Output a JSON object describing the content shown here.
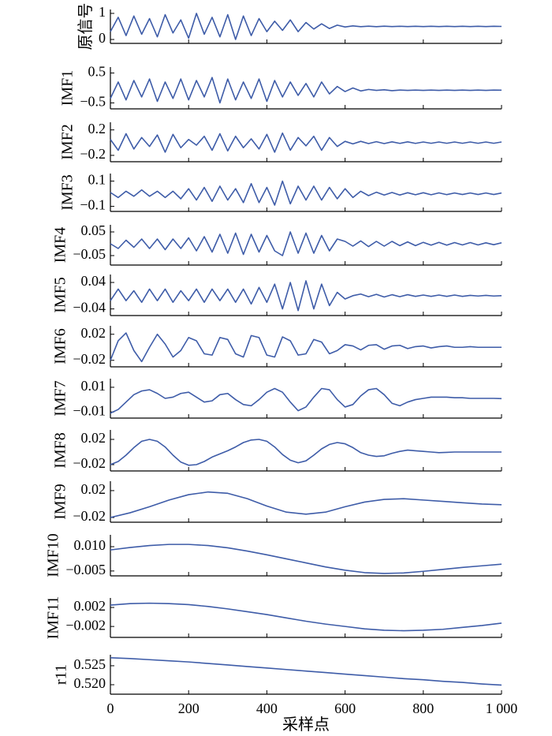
{
  "chart_data": [
    {
      "type": "line",
      "ylabel": "原信号",
      "color": "#3e5ca8",
      "xlim": [
        0,
        1000
      ],
      "ylim": [
        -0.15,
        1.15
      ],
      "yticks": [
        0,
        1
      ],
      "x": [
        0,
        20,
        40,
        60,
        80,
        100,
        120,
        140,
        160,
        180,
        200,
        220,
        240,
        260,
        280,
        300,
        320,
        340,
        360,
        380,
        400,
        420,
        440,
        460,
        480,
        500,
        520,
        540,
        560,
        580,
        600,
        620,
        640,
        660,
        680,
        700,
        720,
        740,
        760,
        780,
        800,
        820,
        840,
        860,
        880,
        900,
        920,
        940,
        960,
        980,
        1000
      ],
      "values": [
        0.3,
        0.85,
        0.15,
        0.9,
        0.2,
        0.8,
        0.1,
        0.95,
        0.25,
        0.75,
        0.05,
        1.0,
        0.2,
        0.85,
        0.1,
        0.95,
        0.0,
        0.9,
        0.15,
        0.8,
        0.3,
        0.7,
        0.35,
        0.75,
        0.3,
        0.65,
        0.4,
        0.6,
        0.42,
        0.55,
        0.48,
        0.52,
        0.49,
        0.51,
        0.49,
        0.51,
        0.495,
        0.505,
        0.495,
        0.505,
        0.495,
        0.505,
        0.495,
        0.505,
        0.495,
        0.505,
        0.495,
        0.505,
        0.495,
        0.505,
        0.5
      ]
    },
    {
      "type": "line",
      "ylabel": "IMF1",
      "color": "#3e5ca8",
      "xlim": [
        0,
        1000
      ],
      "ylim": [
        -0.7,
        0.7
      ],
      "yticks": [
        0.5,
        {
          "value": -0.5,
          "label": "−0.5"
        }
      ],
      "x": [
        0,
        20,
        40,
        60,
        80,
        100,
        120,
        140,
        160,
        180,
        200,
        220,
        240,
        260,
        280,
        300,
        320,
        340,
        360,
        380,
        400,
        420,
        440,
        460,
        480,
        500,
        520,
        540,
        560,
        580,
        600,
        620,
        640,
        660,
        680,
        700,
        720,
        740,
        760,
        780,
        800,
        820,
        840,
        860,
        880,
        900,
        920,
        940,
        960,
        980,
        1000
      ],
      "values": [
        -0.35,
        0.2,
        -0.4,
        0.25,
        -0.3,
        0.3,
        -0.45,
        0.2,
        -0.35,
        0.3,
        -0.4,
        0.25,
        -0.3,
        0.35,
        -0.5,
        0.3,
        -0.4,
        0.2,
        -0.35,
        0.3,
        -0.45,
        0.25,
        -0.3,
        0.2,
        -0.25,
        0.15,
        -0.3,
        0.2,
        -0.2,
        0.05,
        -0.12,
        0.0,
        -0.1,
        -0.05,
        -0.08,
        -0.06,
        -0.09,
        -0.07,
        -0.08,
        -0.07,
        -0.08,
        -0.07,
        -0.08,
        -0.07,
        -0.08,
        -0.07,
        -0.08,
        -0.07,
        -0.08,
        -0.07,
        -0.075
      ]
    },
    {
      "type": "line",
      "ylabel": "IMF2",
      "color": "#3e5ca8",
      "xlim": [
        0,
        1000
      ],
      "ylim": [
        -0.3,
        0.32
      ],
      "yticks": [
        0.2,
        {
          "value": -0.2,
          "label": "−0.2"
        }
      ],
      "x": [
        0,
        20,
        40,
        60,
        80,
        100,
        120,
        140,
        160,
        180,
        200,
        220,
        240,
        260,
        280,
        300,
        320,
        340,
        360,
        380,
        400,
        420,
        440,
        460,
        480,
        500,
        520,
        540,
        560,
        580,
        600,
        620,
        640,
        660,
        680,
        700,
        720,
        740,
        760,
        780,
        800,
        820,
        840,
        860,
        880,
        900,
        920,
        940,
        960,
        980,
        1000
      ],
      "values": [
        0.05,
        -0.12,
        0.14,
        -0.1,
        0.08,
        -0.06,
        0.12,
        -0.15,
        0.13,
        -0.08,
        0.05,
        -0.04,
        0.1,
        -0.12,
        0.14,
        -0.13,
        0.1,
        -0.08,
        0.06,
        -0.1,
        0.13,
        -0.15,
        0.15,
        -0.12,
        0.08,
        -0.05,
        0.1,
        -0.12,
        0.08,
        -0.06,
        0.02,
        -0.02,
        0.02,
        -0.015,
        0.015,
        -0.015,
        0.012,
        -0.012,
        0.012,
        -0.012,
        0.01,
        -0.01,
        0.01,
        -0.01,
        0.01,
        -0.01,
        0.01,
        -0.01,
        0.01,
        -0.01,
        0.01
      ]
    },
    {
      "type": "line",
      "ylabel": "IMF3",
      "color": "#3e5ca8",
      "xlim": [
        0,
        1000
      ],
      "ylim": [
        -0.14,
        0.16
      ],
      "yticks": [
        0.1,
        {
          "value": -0.1,
          "label": "−0.1"
        }
      ],
      "x": [
        0,
        20,
        40,
        60,
        80,
        100,
        120,
        140,
        160,
        180,
        200,
        220,
        240,
        260,
        280,
        300,
        320,
        340,
        360,
        380,
        400,
        420,
        440,
        460,
        480,
        500,
        520,
        540,
        560,
        580,
        600,
        620,
        640,
        660,
        680,
        700,
        720,
        740,
        760,
        780,
        800,
        820,
        840,
        860,
        880,
        900,
        920,
        940,
        960,
        980,
        1000
      ],
      "values": [
        0.01,
        -0.03,
        0.02,
        -0.02,
        0.03,
        -0.02,
        0.02,
        -0.03,
        0.02,
        -0.04,
        0.04,
        -0.05,
        0.05,
        -0.06,
        0.06,
        -0.05,
        0.04,
        -0.07,
        0.08,
        -0.07,
        0.05,
        -0.09,
        0.1,
        -0.08,
        0.06,
        -0.05,
        0.06,
        -0.05,
        0.05,
        -0.04,
        0.04,
        -0.03,
        0.02,
        -0.015,
        0.012,
        -0.01,
        0.01,
        -0.01,
        0.008,
        -0.008,
        0.008,
        -0.008,
        0.007,
        -0.007,
        0.006,
        -0.006,
        0.006,
        -0.006,
        0.006,
        -0.006,
        0.006
      ]
    },
    {
      "type": "line",
      "ylabel": "IMF4",
      "color": "#3e5ca8",
      "xlim": [
        0,
        1000
      ],
      "ylim": [
        -0.09,
        0.08
      ],
      "yticks": [
        0.05,
        {
          "value": -0.05,
          "label": "−0.05"
        }
      ],
      "x": [
        0,
        20,
        40,
        60,
        80,
        100,
        120,
        140,
        160,
        180,
        200,
        220,
        240,
        260,
        280,
        300,
        320,
        340,
        360,
        380,
        400,
        420,
        440,
        460,
        480,
        500,
        520,
        540,
        560,
        580,
        600,
        620,
        640,
        660,
        680,
        700,
        720,
        740,
        760,
        780,
        800,
        820,
        840,
        860,
        880,
        900,
        920,
        940,
        960,
        980,
        1000
      ],
      "values": [
        0.0,
        -0.02,
        0.015,
        -0.015,
        0.02,
        -0.02,
        0.02,
        -0.025,
        0.02,
        -0.02,
        0.025,
        -0.03,
        0.03,
        -0.035,
        0.04,
        -0.04,
        0.045,
        -0.045,
        0.04,
        -0.035,
        0.035,
        -0.03,
        -0.05,
        0.05,
        -0.04,
        0.045,
        -0.04,
        0.035,
        -0.03,
        0.02,
        0.01,
        -0.01,
        0.012,
        -0.012,
        0.01,
        -0.01,
        0.01,
        -0.008,
        0.008,
        -0.008,
        0.006,
        -0.006,
        0.006,
        -0.006,
        0.005,
        -0.005,
        0.005,
        -0.005,
        0.004,
        -0.004,
        0.004
      ]
    },
    {
      "type": "line",
      "ylabel": "IMF5",
      "color": "#3e5ca8",
      "xlim": [
        0,
        1000
      ],
      "ylim": [
        -0.06,
        0.064
      ],
      "yticks": [
        0.04,
        {
          "value": -0.04,
          "label": "−0.04"
        }
      ],
      "x": [
        0,
        20,
        40,
        60,
        80,
        100,
        120,
        140,
        160,
        180,
        200,
        220,
        240,
        260,
        280,
        300,
        320,
        340,
        360,
        380,
        400,
        420,
        440,
        460,
        480,
        500,
        520,
        540,
        560,
        580,
        600,
        620,
        640,
        660,
        680,
        700,
        720,
        740,
        760,
        780,
        800,
        820,
        840,
        860,
        880,
        900,
        920,
        940,
        960,
        980,
        1000
      ],
      "values": [
        -0.015,
        0.02,
        -0.015,
        0.015,
        -0.02,
        0.02,
        -0.015,
        0.02,
        -0.02,
        0.015,
        -0.015,
        0.02,
        -0.02,
        0.02,
        -0.015,
        0.02,
        -0.02,
        0.02,
        -0.025,
        0.025,
        -0.02,
        0.035,
        -0.04,
        0.04,
        -0.045,
        0.045,
        -0.04,
        0.035,
        -0.03,
        0.01,
        -0.01,
        0.0,
        0.005,
        -0.003,
        0.004,
        -0.004,
        0.003,
        -0.003,
        0.003,
        -0.002,
        0.002,
        -0.002,
        0.002,
        -0.002,
        0.002,
        -0.002,
        0.001,
        -0.001,
        0.001,
        -0.001,
        0.0
      ]
    },
    {
      "type": "line",
      "ylabel": "IMF6",
      "color": "#3e5ca8",
      "xlim": [
        0,
        1000
      ],
      "ylim": [
        -0.03,
        0.033
      ],
      "yticks": [
        0.02,
        {
          "value": -0.02,
          "label": "−0.02"
        }
      ],
      "x": [
        0,
        20,
        40,
        60,
        80,
        100,
        120,
        140,
        160,
        180,
        200,
        220,
        240,
        260,
        280,
        300,
        320,
        340,
        360,
        380,
        400,
        420,
        440,
        460,
        480,
        500,
        520,
        540,
        560,
        580,
        600,
        620,
        640,
        660,
        680,
        700,
        720,
        740,
        760,
        780,
        800,
        820,
        840,
        860,
        880,
        900,
        920,
        940,
        960,
        980,
        1000
      ],
      "values": [
        -0.02,
        0.01,
        0.022,
        -0.005,
        -0.022,
        0.0,
        0.02,
        0.005,
        -0.015,
        -0.005,
        0.015,
        0.01,
        -0.01,
        -0.012,
        0.015,
        0.012,
        -0.01,
        -0.015,
        0.018,
        0.015,
        -0.012,
        -0.015,
        0.016,
        0.01,
        -0.012,
        -0.01,
        0.012,
        0.008,
        -0.01,
        -0.005,
        0.004,
        0.002,
        -0.004,
        0.003,
        0.004,
        -0.003,
        0.002,
        0.003,
        -0.002,
        0.001,
        0.002,
        -0.001,
        0.001,
        0.002,
        0.0,
        0.0,
        0.001,
        0.0,
        0.0,
        0.0,
        0.0
      ]
    },
    {
      "type": "line",
      "ylabel": "IMF7",
      "color": "#3e5ca8",
      "xlim": [
        0,
        1000
      ],
      "ylim": [
        -0.015,
        0.017
      ],
      "yticks": [
        0.01,
        {
          "value": -0.01,
          "label": "−0.01"
        }
      ],
      "x": [
        0,
        20,
        40,
        60,
        80,
        100,
        120,
        140,
        160,
        180,
        200,
        220,
        240,
        260,
        280,
        300,
        320,
        340,
        360,
        380,
        400,
        420,
        440,
        460,
        480,
        500,
        520,
        540,
        560,
        580,
        600,
        620,
        640,
        660,
        680,
        700,
        720,
        740,
        760,
        780,
        800,
        820,
        840,
        860,
        880,
        900,
        920,
        940,
        960,
        980,
        1000
      ],
      "values": [
        -0.011,
        -0.008,
        -0.002,
        0.004,
        0.007,
        0.008,
        0.005,
        0.001,
        0.002,
        0.005,
        0.006,
        0.002,
        -0.002,
        -0.001,
        0.004,
        0.005,
        0.0,
        -0.004,
        -0.005,
        0.0,
        0.006,
        0.009,
        0.006,
        -0.002,
        -0.009,
        -0.006,
        0.002,
        0.009,
        0.008,
        0.0,
        -0.006,
        -0.004,
        0.003,
        0.008,
        0.009,
        0.004,
        -0.003,
        -0.005,
        -0.002,
        0.0,
        0.001,
        0.002,
        0.002,
        0.002,
        0.0015,
        0.0015,
        0.001,
        0.001,
        0.001,
        0.001,
        0.0008
      ]
    },
    {
      "type": "line",
      "ylabel": "IMF8",
      "color": "#3e5ca8",
      "xlim": [
        0,
        1000
      ],
      "ylim": [
        -0.03,
        0.035
      ],
      "yticks": [
        0.02,
        {
          "value": -0.02,
          "label": "−0.02"
        }
      ],
      "x": [
        0,
        20,
        40,
        60,
        80,
        100,
        120,
        140,
        160,
        180,
        200,
        220,
        240,
        260,
        280,
        300,
        320,
        340,
        360,
        380,
        400,
        420,
        440,
        460,
        480,
        500,
        520,
        540,
        560,
        580,
        600,
        620,
        640,
        660,
        680,
        700,
        720,
        740,
        760,
        780,
        800,
        820,
        840,
        860,
        880,
        900,
        920,
        940,
        960,
        980,
        1000
      ],
      "values": [
        -0.02,
        -0.015,
        -0.005,
        0.007,
        0.017,
        0.02,
        0.017,
        0.008,
        -0.005,
        -0.016,
        -0.021,
        -0.02,
        -0.015,
        -0.008,
        -0.003,
        0.002,
        0.008,
        0.015,
        0.019,
        0.02,
        0.017,
        0.008,
        -0.004,
        -0.013,
        -0.017,
        -0.014,
        -0.005,
        0.005,
        0.012,
        0.015,
        0.013,
        0.007,
        -0.001,
        -0.005,
        -0.007,
        -0.006,
        -0.002,
        0.001,
        0.003,
        0.002,
        0.001,
        0.0,
        -0.001,
        -0.0005,
        0.0,
        0.0,
        0.0,
        0.0,
        0.0,
        0.0,
        0.0
      ]
    },
    {
      "type": "line",
      "ylabel": "IMF9",
      "color": "#3e5ca8",
      "xlim": [
        0,
        1000
      ],
      "ylim": [
        -0.027,
        0.034
      ],
      "yticks": [
        0.02,
        {
          "value": -0.02,
          "label": "−0.02"
        }
      ],
      "x": [
        0,
        50,
        100,
        150,
        200,
        250,
        300,
        350,
        400,
        450,
        500,
        550,
        600,
        650,
        700,
        750,
        800,
        850,
        900,
        950,
        1000
      ],
      "values": [
        -0.02,
        -0.013,
        -0.004,
        0.006,
        0.014,
        0.018,
        0.016,
        0.008,
        -0.003,
        -0.012,
        -0.015,
        -0.012,
        -0.004,
        0.003,
        0.007,
        0.008,
        0.006,
        0.004,
        0.002,
        0.0,
        -0.001
      ]
    },
    {
      "type": "line",
      "ylabel": "IMF10",
      "color": "#3e5ca8",
      "xlim": [
        0,
        1000
      ],
      "ylim": [
        -0.008,
        0.0173
      ],
      "yticks": [
        {
          "value": 0.01,
          "label": "0.010"
        },
        {
          "value": -0.005,
          "label": "−0.005"
        }
      ],
      "x": [
        0,
        50,
        100,
        150,
        200,
        250,
        300,
        350,
        400,
        450,
        500,
        550,
        600,
        650,
        700,
        750,
        800,
        850,
        900,
        950,
        1000
      ],
      "values": [
        0.008,
        0.0095,
        0.0107,
        0.0114,
        0.0114,
        0.0107,
        0.0093,
        0.0073,
        0.005,
        0.0025,
        0.0,
        -0.0025,
        -0.0045,
        -0.006,
        -0.0065,
        -0.0062,
        -0.0052,
        -0.004,
        -0.0028,
        -0.0018,
        -0.0008
      ]
    },
    {
      "type": "line",
      "ylabel": "IMF11",
      "color": "#3e5ca8",
      "xlim": [
        0,
        1000
      ],
      "ylim": [
        -0.0043,
        0.004
      ],
      "yticks": [
        0.002,
        {
          "value": -0.002,
          "label": "−0.002"
        }
      ],
      "x": [
        0,
        50,
        100,
        150,
        200,
        250,
        300,
        350,
        400,
        450,
        500,
        550,
        600,
        650,
        700,
        750,
        800,
        850,
        900,
        950,
        1000
      ],
      "values": [
        0.0025,
        0.0028,
        0.0029,
        0.0028,
        0.0026,
        0.0022,
        0.0017,
        0.0011,
        0.0005,
        -0.0002,
        -0.0009,
        -0.0015,
        -0.002,
        -0.0025,
        -0.0028,
        -0.0029,
        -0.0028,
        -0.0026,
        -0.0022,
        -0.0018,
        -0.0013
      ]
    },
    {
      "type": "line",
      "ylabel": "r11",
      "xlabel": "采样点",
      "color": "#3e5ca8",
      "xlim": [
        0,
        1000
      ],
      "ylim": [
        0.5175,
        0.5279
      ],
      "yticks": [
        0.525,
        {
          "value": 0.52,
          "label": "0.520"
        }
      ],
      "xticks": [
        0,
        200,
        400,
        600,
        800,
        {
          "value": 1000,
          "label": "1 000"
        }
      ],
      "x": [
        0,
        50,
        100,
        150,
        200,
        250,
        300,
        350,
        400,
        450,
        500,
        550,
        600,
        650,
        700,
        750,
        800,
        850,
        900,
        950,
        1000
      ],
      "values": [
        0.5271,
        0.5269,
        0.5266,
        0.5263,
        0.526,
        0.5256,
        0.5252,
        0.5248,
        0.5244,
        0.524,
        0.5236,
        0.5232,
        0.5228,
        0.5224,
        0.522,
        0.5216,
        0.5213,
        0.5209,
        0.5206,
        0.5202,
        0.5199
      ]
    }
  ]
}
